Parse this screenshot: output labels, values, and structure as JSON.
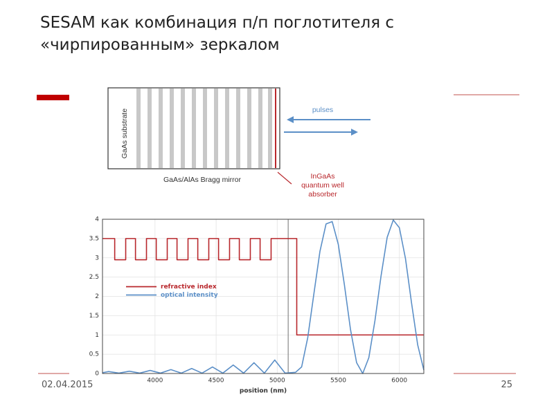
{
  "slide": {
    "title_lines": [
      "SESAM как комбинация п/п поглотителя с",
      "«чирпированным» зеркалом"
    ],
    "date": "02.04.2015",
    "page_number": "25"
  },
  "diagram": {
    "substrate_label": "GaAs substrate",
    "mirror_label": "GaAs/AlAs Bragg mirror",
    "pulses_label": "pulses",
    "absorber_label_lines": [
      "InGaAs",
      "quantum well",
      "absorber"
    ]
  },
  "chart_data": {
    "type": "line",
    "x_label": "position (nm)",
    "xlim": [
      3570,
      6200
    ],
    "xticks": [
      4000,
      4500,
      5000,
      5500,
      6000
    ],
    "ylim": [
      0,
      4
    ],
    "yticks": [
      0,
      0.5,
      1,
      1.5,
      2,
      2.5,
      3,
      3.5,
      4
    ],
    "grid": true,
    "legend_position": "center left",
    "vline_x": 5090,
    "series": [
      {
        "name": "refractive index",
        "color": "#b8262b",
        "x": [
          3570,
          3670,
          3670,
          3760,
          3760,
          3840,
          3840,
          3930,
          3930,
          4010,
          4010,
          4100,
          4100,
          4180,
          4180,
          4270,
          4270,
          4350,
          4350,
          4440,
          4440,
          4520,
          4520,
          4610,
          4610,
          4690,
          4690,
          4780,
          4780,
          4860,
          4860,
          4950,
          4950,
          5160,
          5160,
          6200
        ],
        "values": [
          3.5,
          3.5,
          2.95,
          2.95,
          3.5,
          3.5,
          2.95,
          2.95,
          3.5,
          3.5,
          2.95,
          2.95,
          3.5,
          3.5,
          2.95,
          2.95,
          3.5,
          3.5,
          2.95,
          2.95,
          3.5,
          3.5,
          2.95,
          2.95,
          3.5,
          3.5,
          2.95,
          2.95,
          3.5,
          3.5,
          2.95,
          2.95,
          3.5,
          3.5,
          1,
          1
        ]
      },
      {
        "name": "optical intensity",
        "color": "#5b8fc7",
        "x": [
          3570,
          3620,
          3705,
          3790,
          3875,
          3960,
          4045,
          4130,
          4215,
          4300,
          4385,
          4470,
          4555,
          4640,
          4725,
          4810,
          4895,
          4980,
          5065,
          5150,
          5200,
          5250,
          5300,
          5350,
          5400,
          5450,
          5500,
          5550,
          5600,
          5650,
          5700,
          5750,
          5800,
          5850,
          5900,
          5950,
          6000,
          6050,
          6100,
          6150,
          6200
        ],
        "values": [
          0.02,
          0.05,
          0.01,
          0.06,
          0.01,
          0.08,
          0.01,
          0.1,
          0.01,
          0.13,
          0.01,
          0.17,
          0.01,
          0.22,
          0.01,
          0.28,
          0.01,
          0.35,
          0.01,
          0.03,
          0.17,
          0.93,
          2.06,
          3.17,
          3.88,
          3.94,
          3.35,
          2.3,
          1.14,
          0.28,
          0,
          0.41,
          1.37,
          2.53,
          3.53,
          3.98,
          3.78,
          2.98,
          1.82,
          0.74,
          0.09
        ]
      }
    ]
  }
}
